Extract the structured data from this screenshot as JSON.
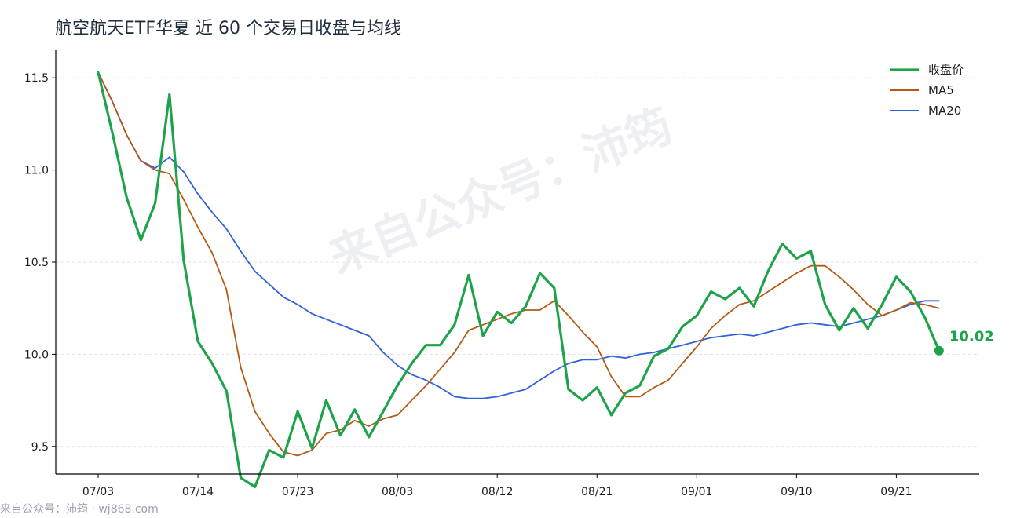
{
  "title": "航空航天ETF华夏 近 60 个交易日收盘与均线",
  "footer": "来自公众号：沛筠 · wj868.com",
  "watermark": "来自公众号：沛筠",
  "colors": {
    "close": "#1ea34a",
    "ma5": "#b55a16",
    "ma20": "#2f63d8",
    "axis": "#000000",
    "grid": "#e3e3e3"
  },
  "chart_data": {
    "type": "line",
    "title": "航空航天ETF华夏 近 60 个交易日收盘与均线",
    "xlabel": "",
    "ylabel": "",
    "ylim": [
      9.35,
      11.65
    ],
    "yticks": [
      9.5,
      10.0,
      10.5,
      11.0,
      11.5
    ],
    "yticklabels": [
      "9.5",
      "10.0",
      "10.5",
      "11.0",
      "11.5"
    ],
    "grid": true,
    "legend_position": "top-right",
    "xticks": [
      0,
      7,
      14,
      21,
      28,
      35,
      42,
      49,
      56
    ],
    "xticklabels": [
      "07/03",
      "07/14",
      "07/23",
      "08/03",
      "08/12",
      "08/21",
      "09/01",
      "09/10",
      "09/21"
    ],
    "series": [
      {
        "name": "收盘价",
        "key": "close",
        "values": [
          11.53,
          11.2,
          10.85,
          10.62,
          10.82,
          11.41,
          10.51,
          10.07,
          9.95,
          9.8,
          9.33,
          9.28,
          9.48,
          9.44,
          9.69,
          9.49,
          9.75,
          9.56,
          9.7,
          9.55,
          9.69,
          9.83,
          9.95,
          10.05,
          10.05,
          10.16,
          10.43,
          10.1,
          10.23,
          10.17,
          10.26,
          10.44,
          10.36,
          9.81,
          9.75,
          9.82,
          9.67,
          9.79,
          9.83,
          9.99,
          10.03,
          10.15,
          10.21,
          10.34,
          10.3,
          10.36,
          10.26,
          10.45,
          10.6,
          10.52,
          10.56,
          10.27,
          10.13,
          10.25,
          10.14,
          10.27,
          10.42,
          10.34,
          10.2,
          10.02
        ]
      },
      {
        "name": "MA5",
        "key": "ma5",
        "values": [
          11.53,
          11.37,
          11.19,
          11.05,
          11.0,
          10.98,
          10.84,
          10.69,
          10.55,
          10.35,
          9.93,
          9.69,
          9.57,
          9.47,
          9.45,
          9.48,
          9.57,
          9.59,
          9.64,
          9.61,
          9.65,
          9.67,
          9.75,
          9.83,
          9.92,
          10.01,
          10.13,
          10.16,
          10.19,
          10.22,
          10.24,
          10.24,
          10.29,
          10.21,
          10.12,
          10.04,
          9.88,
          9.77,
          9.77,
          9.82,
          9.86,
          9.95,
          10.04,
          10.14,
          10.21,
          10.27,
          10.29,
          10.34,
          10.39,
          10.44,
          10.48,
          10.48,
          10.42,
          10.35,
          10.27,
          10.21,
          10.24,
          10.28,
          10.27,
          10.25
        ]
      },
      {
        "name": "MA20",
        "key": "ma20",
        "values": [
          11.53,
          11.37,
          11.19,
          11.05,
          11.01,
          11.07,
          10.99,
          10.87,
          10.77,
          10.68,
          10.56,
          10.45,
          10.38,
          10.31,
          10.27,
          10.22,
          10.19,
          10.16,
          10.13,
          10.1,
          10.01,
          9.94,
          9.89,
          9.86,
          9.82,
          9.77,
          9.76,
          9.76,
          9.77,
          9.79,
          9.81,
          9.86,
          9.91,
          9.95,
          9.97,
          9.97,
          9.99,
          9.98,
          10.0,
          10.01,
          10.03,
          10.05,
          10.07,
          10.09,
          10.1,
          10.11,
          10.1,
          10.12,
          10.14,
          10.16,
          10.17,
          10.16,
          10.15,
          10.17,
          10.19,
          10.21,
          10.24,
          10.27,
          10.29,
          10.29
        ]
      }
    ],
    "annotations": [
      {
        "text": "10.02",
        "series": "close",
        "index": 59
      }
    ]
  }
}
